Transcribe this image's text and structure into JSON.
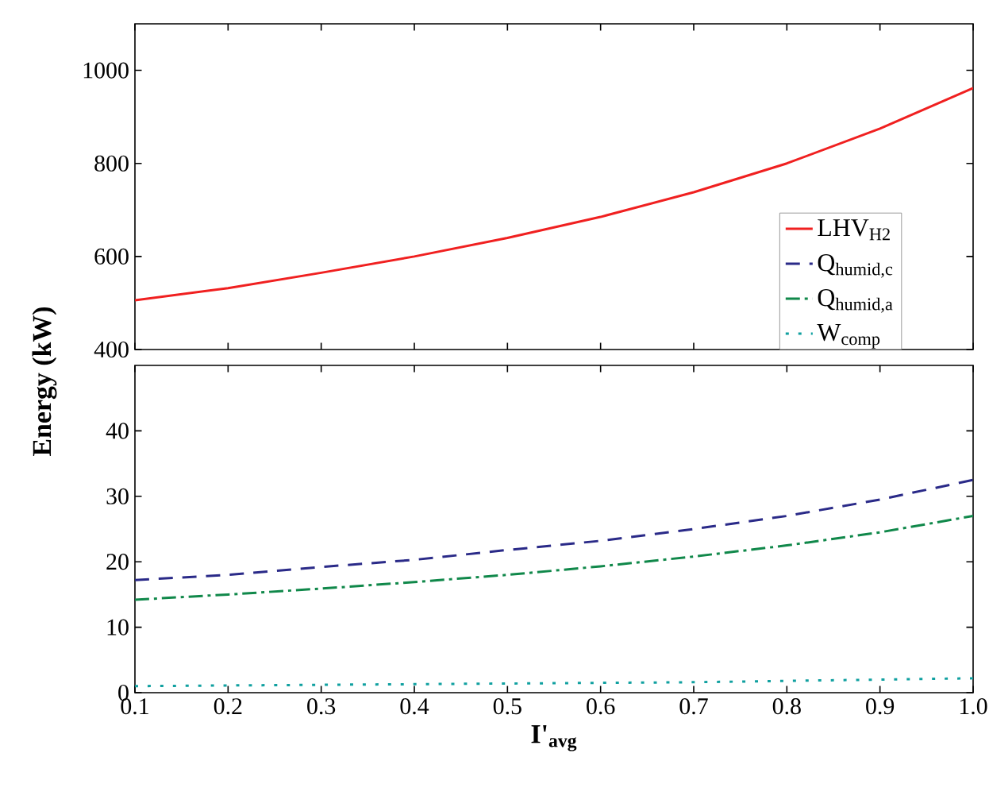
{
  "chart_data": [
    {
      "type": "line",
      "ylabel": "Energy (kW)",
      "x": [
        0.1,
        0.2,
        0.3,
        0.4,
        0.5,
        0.6,
        0.7,
        0.8,
        0.9,
        1.0
      ],
      "series": [
        {
          "name": "LHV$_{H2}$",
          "color": "#f02020",
          "line_style": "solid",
          "values": [
            506,
            532,
            565,
            600,
            640,
            685,
            738,
            800,
            875,
            962
          ]
        }
      ],
      "xlim": [
        0.1,
        1.0
      ],
      "xticks": [
        0.1,
        0.2,
        0.3,
        0.4,
        0.5,
        0.6,
        0.7,
        0.8,
        0.9,
        1.0
      ],
      "ylim": [
        400,
        1100
      ],
      "yticks": [
        400,
        600,
        800,
        1000
      ],
      "tick_labels": "y",
      "legend": "right",
      "grid": false
    },
    {
      "type": "line",
      "xlabel": "I'$_{avg}$",
      "x": [
        0.1,
        0.2,
        0.3,
        0.4,
        0.5,
        0.6,
        0.7,
        0.8,
        0.9,
        1.0
      ],
      "series": [
        {
          "name": "Q$_{humid,c}$",
          "color": "#2a2a88",
          "line_style": "dashed",
          "values": [
            17.2,
            18.0,
            19.2,
            20.3,
            21.8,
            23.2,
            25.0,
            27.0,
            29.5,
            32.5
          ]
        },
        {
          "name": "Q$_{humid,a}$",
          "color": "#10884a",
          "line_style": "dashdot",
          "values": [
            14.2,
            15.0,
            15.9,
            16.9,
            18.0,
            19.3,
            20.8,
            22.5,
            24.5,
            27.0
          ]
        },
        {
          "name": "W$_{comp}$",
          "color": "#10a0a0",
          "line_style": "dotted",
          "values": [
            1.0,
            1.1,
            1.2,
            1.3,
            1.4,
            1.5,
            1.6,
            1.8,
            2.0,
            2.2
          ]
        }
      ],
      "xlim": [
        0.1,
        1.0
      ],
      "xticks": [
        0.1,
        0.2,
        0.3,
        0.4,
        0.5,
        0.6,
        0.7,
        0.8,
        0.9,
        {
          "value": 1.0,
          "label": "1.0"
        }
      ],
      "ylim": [
        0,
        50
      ],
      "yticks": [
        0,
        10,
        20,
        30,
        40
      ],
      "grid": false
    }
  ]
}
